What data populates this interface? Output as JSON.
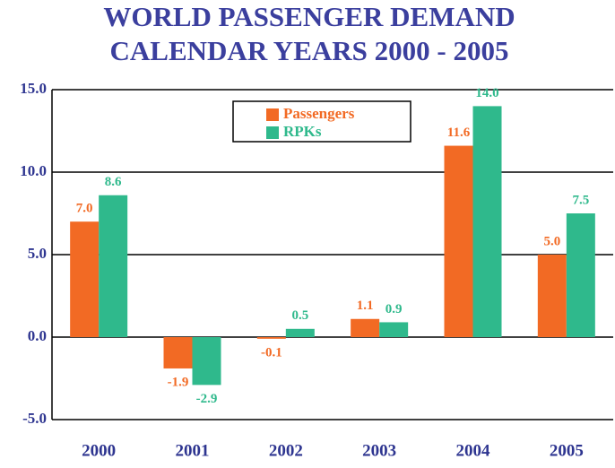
{
  "chart_data": {
    "type": "bar",
    "title": "WORLD PASSENGER DEMAND",
    "subtitle": "CALENDAR YEARS  2000 - 2005",
    "categories": [
      "2000",
      "2001",
      "2002",
      "2003",
      "2004",
      "2005"
    ],
    "series": [
      {
        "name": "Passengers",
        "color": "#f26a24",
        "values": [
          7.0,
          -1.9,
          -0.1,
          1.1,
          11.6,
          5.0
        ],
        "value_labels": [
          "7.0",
          "-1.9",
          "-0.1",
          "1.1",
          "11.6",
          "5.0"
        ]
      },
      {
        "name": "RPKs",
        "color": "#2fb98c",
        "values": [
          8.6,
          -2.9,
          0.5,
          0.9,
          14.0,
          7.5
        ],
        "value_labels": [
          "8.6",
          "-2.9",
          "0.5",
          "0.9",
          "14.0",
          "7.5"
        ]
      }
    ],
    "ylim": [
      -5,
      15
    ],
    "yticks": [
      {
        "value": -5,
        "label": "-5.0"
      },
      {
        "value": 0,
        "label": "0.0"
      },
      {
        "value": 5,
        "label": "5.0"
      },
      {
        "value": 10,
        "label": "10.0"
      },
      {
        "value": 15,
        "label": "15.0"
      }
    ],
    "grid": true,
    "legend": "top"
  }
}
